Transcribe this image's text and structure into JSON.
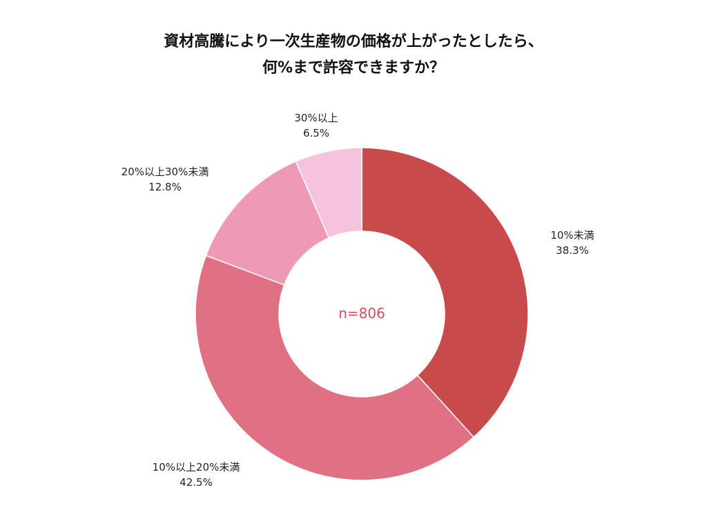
{
  "chart_data": {
    "type": "pie",
    "title_lines": [
      "資材高騰により一次生産物の価格が上がったとしたら、",
      "何%まで許容できますか？"
    ],
    "center_text": "n=806",
    "center_text_color": "#d0505a",
    "slices": [
      {
        "label": "10%未満",
        "value": 38.3,
        "display": "38.3%",
        "color": "#c94a4a"
      },
      {
        "label": "10%以上20%未満",
        "value": 42.5,
        "display": "42.5%",
        "color": "#e07185"
      },
      {
        "label": "20%以上30%未満",
        "value": 12.8,
        "display": "12.8%",
        "color": "#ee9ab6"
      },
      {
        "label": "30%以上",
        "value": 6.5,
        "display": "6.5%",
        "color": "#f6c3df"
      }
    ]
  }
}
